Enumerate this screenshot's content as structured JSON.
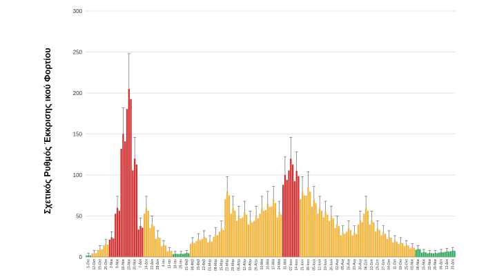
{
  "chart_data": {
    "type": "bar",
    "title": "",
    "xlabel": "",
    "ylabel": "Σχετικός Ρυθμός Έκκρισης ικού Φορτίου",
    "ylim": [
      0,
      300
    ],
    "yticks": [
      0,
      50,
      100,
      150,
      200,
      250,
      300
    ],
    "grid": true,
    "legend": "none",
    "colors": {
      "red": "#d62f2f",
      "orange": "#f5b43a",
      "green": "#2eaa5c",
      "error": "#555555",
      "grid": "#d9d9d9"
    },
    "x": [
      "5-Οκτ",
      "12-Οκτ",
      "19-Οκτ",
      "26-Οκτ",
      "2-Νοε",
      "9-Νοε",
      "16-Νοε",
      "23-Νοε",
      "30-Νοε",
      "7-Δεκ",
      "14-Δεκ",
      "21-Δεκ",
      "28-Δεκ",
      "4-Ιαν",
      "11-Ιαν",
      "18-Ιαν",
      "25-Ιαν",
      "01-Φεβ",
      "08-Φεβ",
      "15-Φεβ",
      "22-Φεβ",
      "01-Μαρ",
      "08-Μαρ",
      "15-Μαρ",
      "22-Μαρ",
      "29-Μαρ",
      "05-Απρ",
      "12-Απρ",
      "19-Απρ",
      "26-Απρ",
      "03-Μαϊ",
      "10-Μαϊ",
      "17-Μαϊ",
      "24-Μαϊ",
      "31-Μαϊ",
      "07-Ιουν",
      "14-Ιουν",
      "21-Ιουν",
      "28-Ιουν",
      "05-Ιουλ",
      "12-Ιουλ",
      "19-Ιουλ",
      "26-Ιουλ",
      "02-Αυγ",
      "09-Αυγ",
      "16-Αυγ",
      "23-Αυγ",
      "30-Αυγ",
      "06-Σεπ",
      "13-Σεπ",
      "20-Σεπ",
      "27-Σεπ",
      "04-Οκτ",
      "11-Οκτ",
      "18-Οκτ",
      "25-Οκτ",
      "01-Νοε",
      "08-Νοε",
      "15-Νοε",
      "22-Νοε",
      "29-Νοε",
      "06-Δεκ",
      "13-Δεκ",
      "20-Δεκ"
    ],
    "series": [
      {
        "values": [
          2,
          5,
          10,
          16,
          24,
          60,
          150,
          205,
          120,
          38,
          60,
          40,
          25,
          15,
          8,
          4,
          4,
          5,
          18,
          22,
          25,
          20,
          28,
          35,
          80,
          60,
          50,
          55,
          45,
          50,
          60,
          65,
          70,
          55,
          100,
          120,
          105,
          80,
          85,
          70,
          60,
          55,
          50,
          40,
          30,
          35,
          30,
          45,
          60,
          45,
          35,
          30,
          25,
          20,
          18,
          15,
          12,
          10,
          6,
          5,
          5,
          6,
          7,
          8
        ],
        "colors": [
          "green",
          "orange",
          "orange",
          "orange",
          "red",
          "red",
          "red",
          "red",
          "red",
          "red",
          "orange",
          "orange",
          "orange",
          "orange",
          "orange",
          "green",
          "green",
          "green",
          "orange",
          "orange",
          "orange",
          "orange",
          "orange",
          "orange",
          "orange",
          "orange",
          "orange",
          "orange",
          "orange",
          "orange",
          "orange",
          "orange",
          "orange",
          "orange",
          "red",
          "red",
          "red",
          "orange",
          "orange",
          "orange",
          "orange",
          "orange",
          "orange",
          "orange",
          "orange",
          "orange",
          "orange",
          "orange",
          "orange",
          "orange",
          "orange",
          "orange",
          "orange",
          "orange",
          "orange",
          "orange",
          "orange",
          "green",
          "green",
          "green",
          "green",
          "green",
          "green",
          "green"
        ]
      }
    ]
  }
}
